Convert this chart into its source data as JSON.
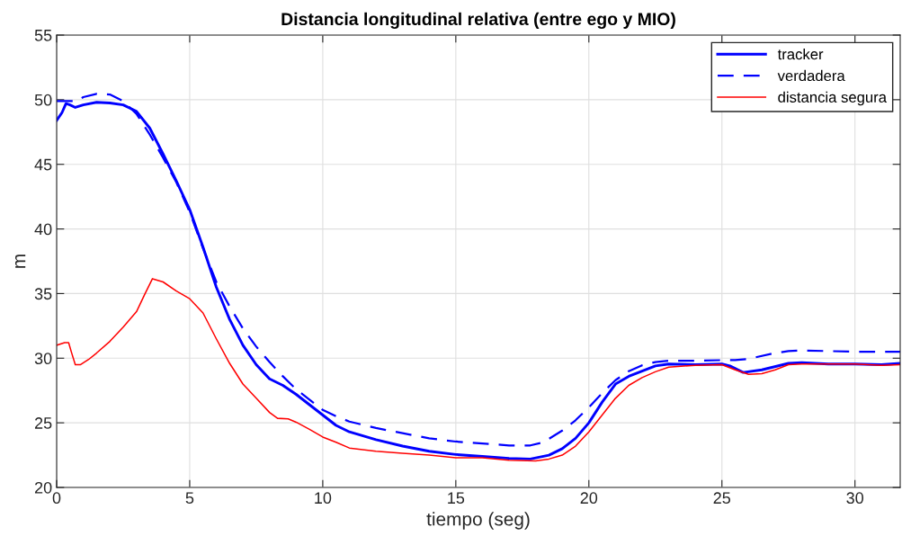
{
  "chart_data": {
    "type": "line",
    "title": "Distancia longitudinal relativa (entre ego y MIO)",
    "xlabel": "tiempo (seg)",
    "ylabel": "m",
    "xlim": [
      0,
      31.7
    ],
    "ylim": [
      20,
      55
    ],
    "xticks": [
      0,
      5,
      10,
      15,
      20,
      25,
      30
    ],
    "yticks": [
      20,
      25,
      30,
      35,
      40,
      45,
      50,
      55
    ],
    "grid": true,
    "legend": "top right",
    "series": [
      {
        "name": "tracker",
        "color": "#0000ff",
        "line_style": "solid",
        "x": [
          0,
          0.2,
          0.35,
          0.5,
          0.7,
          1.0,
          1.5,
          2,
          2.5,
          3.0,
          3.5,
          4,
          4.5,
          5,
          5.5,
          6,
          6.5,
          7,
          7.5,
          8,
          8.5,
          9,
          9.5,
          10,
          10.5,
          11,
          12,
          13,
          14,
          15,
          16,
          17,
          17.8,
          18.5,
          19,
          19.5,
          20,
          20.5,
          21,
          21.5,
          22,
          22.5,
          23,
          24,
          25,
          25.3,
          25.8,
          26.5,
          27.5,
          28,
          29,
          30,
          31,
          31.7
        ],
        "values": [
          48.4,
          49.0,
          49.7,
          49.6,
          49.4,
          49.6,
          49.8,
          49.75,
          49.6,
          49.1,
          47.8,
          45.8,
          43.7,
          41.5,
          38.6,
          35.5,
          33.0,
          31.0,
          29.5,
          28.4,
          27.9,
          27.2,
          26.4,
          25.6,
          24.8,
          24.3,
          23.7,
          23.2,
          22.8,
          22.55,
          22.4,
          22.25,
          22.2,
          22.5,
          23.0,
          23.8,
          25.0,
          26.6,
          28.0,
          28.6,
          29.0,
          29.4,
          29.55,
          29.5,
          29.55,
          29.4,
          28.9,
          29.1,
          29.6,
          29.65,
          29.55,
          29.55,
          29.5,
          29.6
        ]
      },
      {
        "name": "verdadera",
        "color": "#0000ff",
        "line_style": "dashed",
        "x": [
          0,
          0.8,
          1,
          1.5,
          2,
          2.5,
          3,
          3.5,
          4,
          4.5,
          5,
          5.5,
          6,
          6.5,
          7,
          7.5,
          8,
          8.5,
          9,
          9.5,
          10,
          10.5,
          11,
          12,
          13,
          14,
          15,
          16,
          17,
          17.8,
          18.3,
          19,
          19.5,
          20,
          20.5,
          21,
          21.5,
          22,
          22.5,
          23,
          24,
          25,
          25.5,
          26,
          27,
          27.5,
          28,
          29,
          30,
          31.7
        ],
        "values": [
          49.9,
          49.9,
          50.2,
          50.45,
          50.4,
          49.9,
          48.9,
          47.3,
          45.5,
          43.6,
          41.3,
          38.5,
          35.9,
          34.0,
          32.3,
          30.9,
          29.7,
          28.6,
          27.6,
          26.8,
          26.0,
          25.5,
          25.1,
          24.6,
          24.2,
          23.8,
          23.55,
          23.4,
          23.25,
          23.25,
          23.5,
          24.4,
          25.2,
          26.2,
          27.3,
          28.3,
          29.0,
          29.45,
          29.7,
          29.8,
          29.8,
          29.85,
          29.85,
          29.95,
          30.4,
          30.55,
          30.6,
          30.55,
          30.5,
          30.5
        ]
      },
      {
        "name": "distancia segura",
        "color": "#ff0000",
        "line_style": "solid",
        "x": [
          0,
          0.3,
          0.45,
          0.55,
          0.7,
          0.9,
          1.2,
          1.5,
          2,
          2.5,
          3,
          3.3,
          3.6,
          4,
          4.5,
          5,
          5.5,
          6,
          6.5,
          7,
          7.5,
          8,
          8.3,
          8.7,
          9,
          9.5,
          10,
          10.5,
          11,
          12,
          13,
          14,
          15,
          16,
          17,
          18,
          18.5,
          19,
          19.5,
          20,
          20.5,
          21,
          21.5,
          22,
          22.5,
          23,
          24,
          25,
          25.5,
          26,
          26.5,
          27,
          27.5,
          28,
          29,
          30,
          31,
          31.7
        ],
        "values": [
          31.0,
          31.2,
          31.2,
          30.5,
          29.5,
          29.5,
          29.9,
          30.4,
          31.3,
          32.4,
          33.6,
          34.9,
          36.15,
          35.9,
          35.2,
          34.6,
          33.5,
          31.5,
          29.6,
          28.0,
          26.9,
          25.8,
          25.35,
          25.3,
          25.05,
          24.5,
          23.9,
          23.5,
          23.05,
          22.8,
          22.65,
          22.5,
          22.3,
          22.3,
          22.1,
          22.05,
          22.2,
          22.5,
          23.2,
          24.3,
          25.6,
          26.9,
          27.9,
          28.5,
          28.95,
          29.3,
          29.45,
          29.5,
          29.1,
          28.75,
          28.8,
          29.1,
          29.5,
          29.55,
          29.55,
          29.55,
          29.45,
          29.5
        ]
      }
    ]
  }
}
